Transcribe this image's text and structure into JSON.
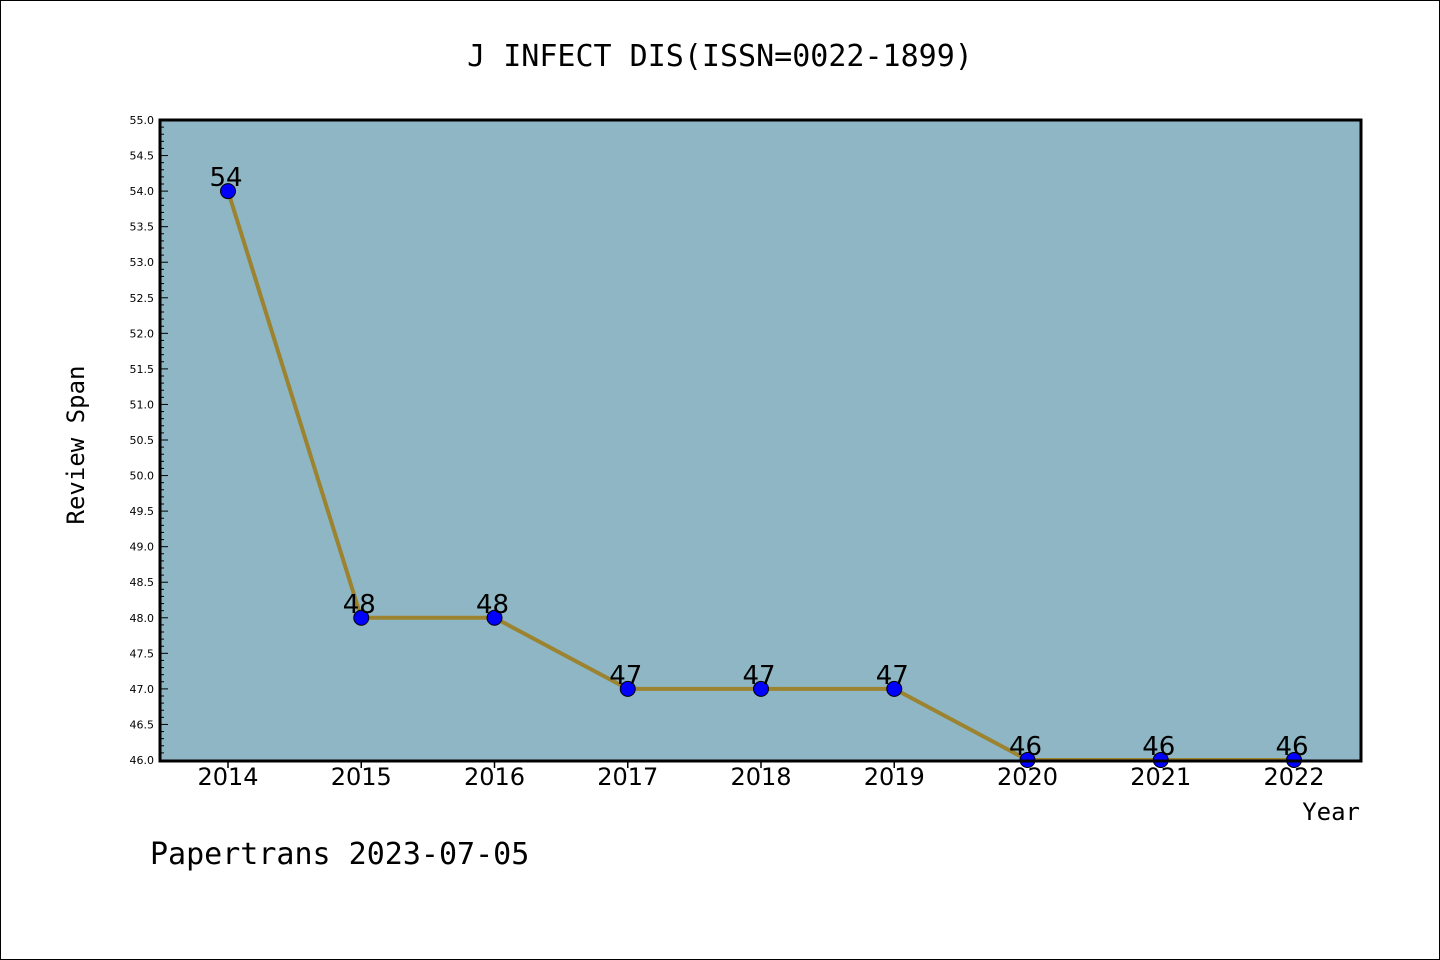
{
  "chart_data": {
    "type": "line",
    "title": "J INFECT DIS(ISSN=0022-1899)",
    "xlabel": "Year",
    "ylabel": "Review Span",
    "categories": [
      "2014",
      "2015",
      "2016",
      "2017",
      "2018",
      "2019",
      "2020",
      "2021",
      "2022"
    ],
    "series": [
      {
        "values": [
          54,
          48,
          48,
          47,
          47,
          47,
          46,
          46,
          46
        ]
      }
    ],
    "ylim": [
      46.0,
      55.0
    ],
    "ytick_step": 0.5,
    "grid": false,
    "legend": "none",
    "colors": {
      "plot_background": "#8fb6c4",
      "line": "#9b8330",
      "marker": "#0000ff"
    }
  },
  "footer": "Papertrans 2023-07-05"
}
